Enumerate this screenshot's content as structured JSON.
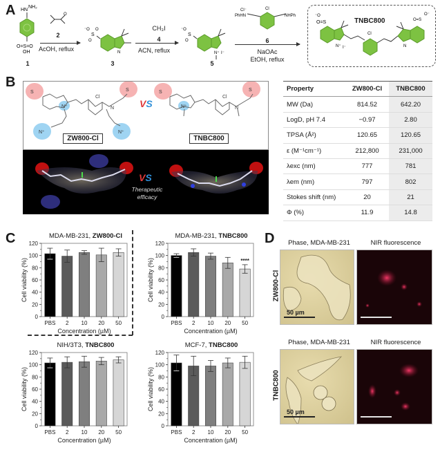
{
  "panels": {
    "A": {
      "letter": "A",
      "reagent_step1": {
        "compound": "2",
        "conditions": "AcOH, reflux"
      },
      "reagent_step2": {
        "compound": "4",
        "reagent": "CH₃I",
        "conditions": "ACN, reflux"
      },
      "reagent_step3": {
        "compound": "6",
        "conditions_line1": "NaOAc",
        "conditions_line2": "EtOH, reflux",
        "substituents": [
          "Cl⁻",
          "PhHN",
          "Cl",
          "NHPh"
        ]
      },
      "compounds": {
        "c1": "1",
        "c3": "3",
        "c5": "5"
      },
      "c1_labels": {
        "top": "HN⁻NH₂",
        "bottom_left": "O=S=O",
        "bottom": "OH"
      },
      "product": {
        "name": "TNBC800",
        "labels": [
          "N⁺",
          "I⁻",
          "Cl",
          "N"
        ]
      },
      "ring_color": "#7dc242"
    },
    "B": {
      "letter": "B",
      "compound_left": "ZW800-Cl",
      "compound_right": "TNBC800",
      "vs_label": "VS",
      "model_caption_line1": "Therapeutic",
      "model_caption_line2": "efficacy",
      "highlight_colors": {
        "sulfonate": "#f4a0a0",
        "ammonium": "#9fd4f2"
      },
      "table": {
        "headers": [
          "Property",
          "ZW800-Cl",
          "TNBC800"
        ],
        "rows": [
          [
            "MW (Da)",
            "814.52",
            "642.20"
          ],
          [
            "LogD, pH 7.4",
            "−0.97",
            "2.80"
          ],
          [
            "TPSA (Å²)",
            "120.65",
            "120.65"
          ],
          [
            "ε (M⁻¹cm⁻¹)",
            "212,800",
            "231,000"
          ],
          [
            "λexc (nm)",
            "777",
            "781"
          ],
          [
            "λem (nm)",
            "797",
            "802"
          ],
          [
            "Stokes shift (nm)",
            "20",
            "21"
          ],
          [
            "Φ (%)",
            "11.9",
            "14.8"
          ]
        ]
      }
    },
    "C": {
      "letter": "C",
      "charts": [
        {
          "title_prefix": "MDA-MB-231, ",
          "title_bold": "ZW800-Cl"
        },
        {
          "title_prefix": "MDA-MB-231, ",
          "title_bold": "TNBC800"
        },
        {
          "title_prefix": "NIH/3T3, ",
          "title_bold": "TNBC800"
        },
        {
          "title_prefix": "MCF-7, ",
          "title_bold": "TNBC800"
        }
      ],
      "ylabel": "Cell viability (%)",
      "xlabel": "Concentration (µM)",
      "categories": [
        "PBS",
        "2",
        "10",
        "20",
        "50"
      ],
      "yticks": [
        "0",
        "20",
        "40",
        "60",
        "80",
        "100",
        "120"
      ],
      "bar_colors": [
        "#000000",
        "#5a5a5a",
        "#7f7f7f",
        "#a9a9a9",
        "#d6d6d6"
      ],
      "significance": "****"
    },
    "D": {
      "letter": "D",
      "col_titles": [
        "Phase, MDA-MB-231",
        "NIR fluorescence"
      ],
      "row_labels": [
        "ZW800-Cl",
        "TNBC800"
      ],
      "scalebar_label": "50 µm"
    }
  },
  "chart_data": [
    {
      "type": "bar",
      "title": "MDA-MB-231, ZW800-Cl",
      "categories": [
        "PBS",
        "2",
        "10",
        "20",
        "50"
      ],
      "values": [
        103,
        99,
        105,
        101,
        105
      ],
      "errors": [
        9,
        10,
        3,
        11,
        6
      ],
      "xlabel": "Concentration (µM)",
      "ylabel": "Cell viability (%)",
      "ylim": [
        0,
        120
      ],
      "grid": false
    },
    {
      "type": "bar",
      "title": "MDA-MB-231, TNBC800",
      "categories": [
        "PBS",
        "2",
        "10",
        "20",
        "50"
      ],
      "values": [
        100,
        105,
        99,
        88,
        78
      ],
      "errors": [
        3,
        6,
        5,
        9,
        7
      ],
      "annotations": [
        {
          "category": "50",
          "text": "****"
        }
      ],
      "xlabel": "Concentration (µM)",
      "ylabel": "Cell viability (%)",
      "ylim": [
        0,
        120
      ],
      "grid": false
    },
    {
      "type": "bar",
      "title": "NIH/3T3, TNBC800",
      "categories": [
        "PBS",
        "2",
        "10",
        "20",
        "50"
      ],
      "values": [
        103,
        104,
        105,
        106,
        108
      ],
      "errors": [
        8,
        9,
        9,
        6,
        5
      ],
      "xlabel": "Concentration (µM)",
      "ylabel": "Cell viability (%)",
      "ylim": [
        0,
        120
      ],
      "grid": false
    },
    {
      "type": "bar",
      "title": "MCF-7, TNBC800",
      "categories": [
        "PBS",
        "2",
        "10",
        "20",
        "50"
      ],
      "values": [
        103,
        98,
        98,
        103,
        104
      ],
      "errors": [
        13,
        16,
        9,
        8,
        10
      ],
      "xlabel": "Concentration (µM)",
      "ylabel": "Cell viability (%)",
      "ylim": [
        0,
        120
      ],
      "grid": false
    }
  ]
}
